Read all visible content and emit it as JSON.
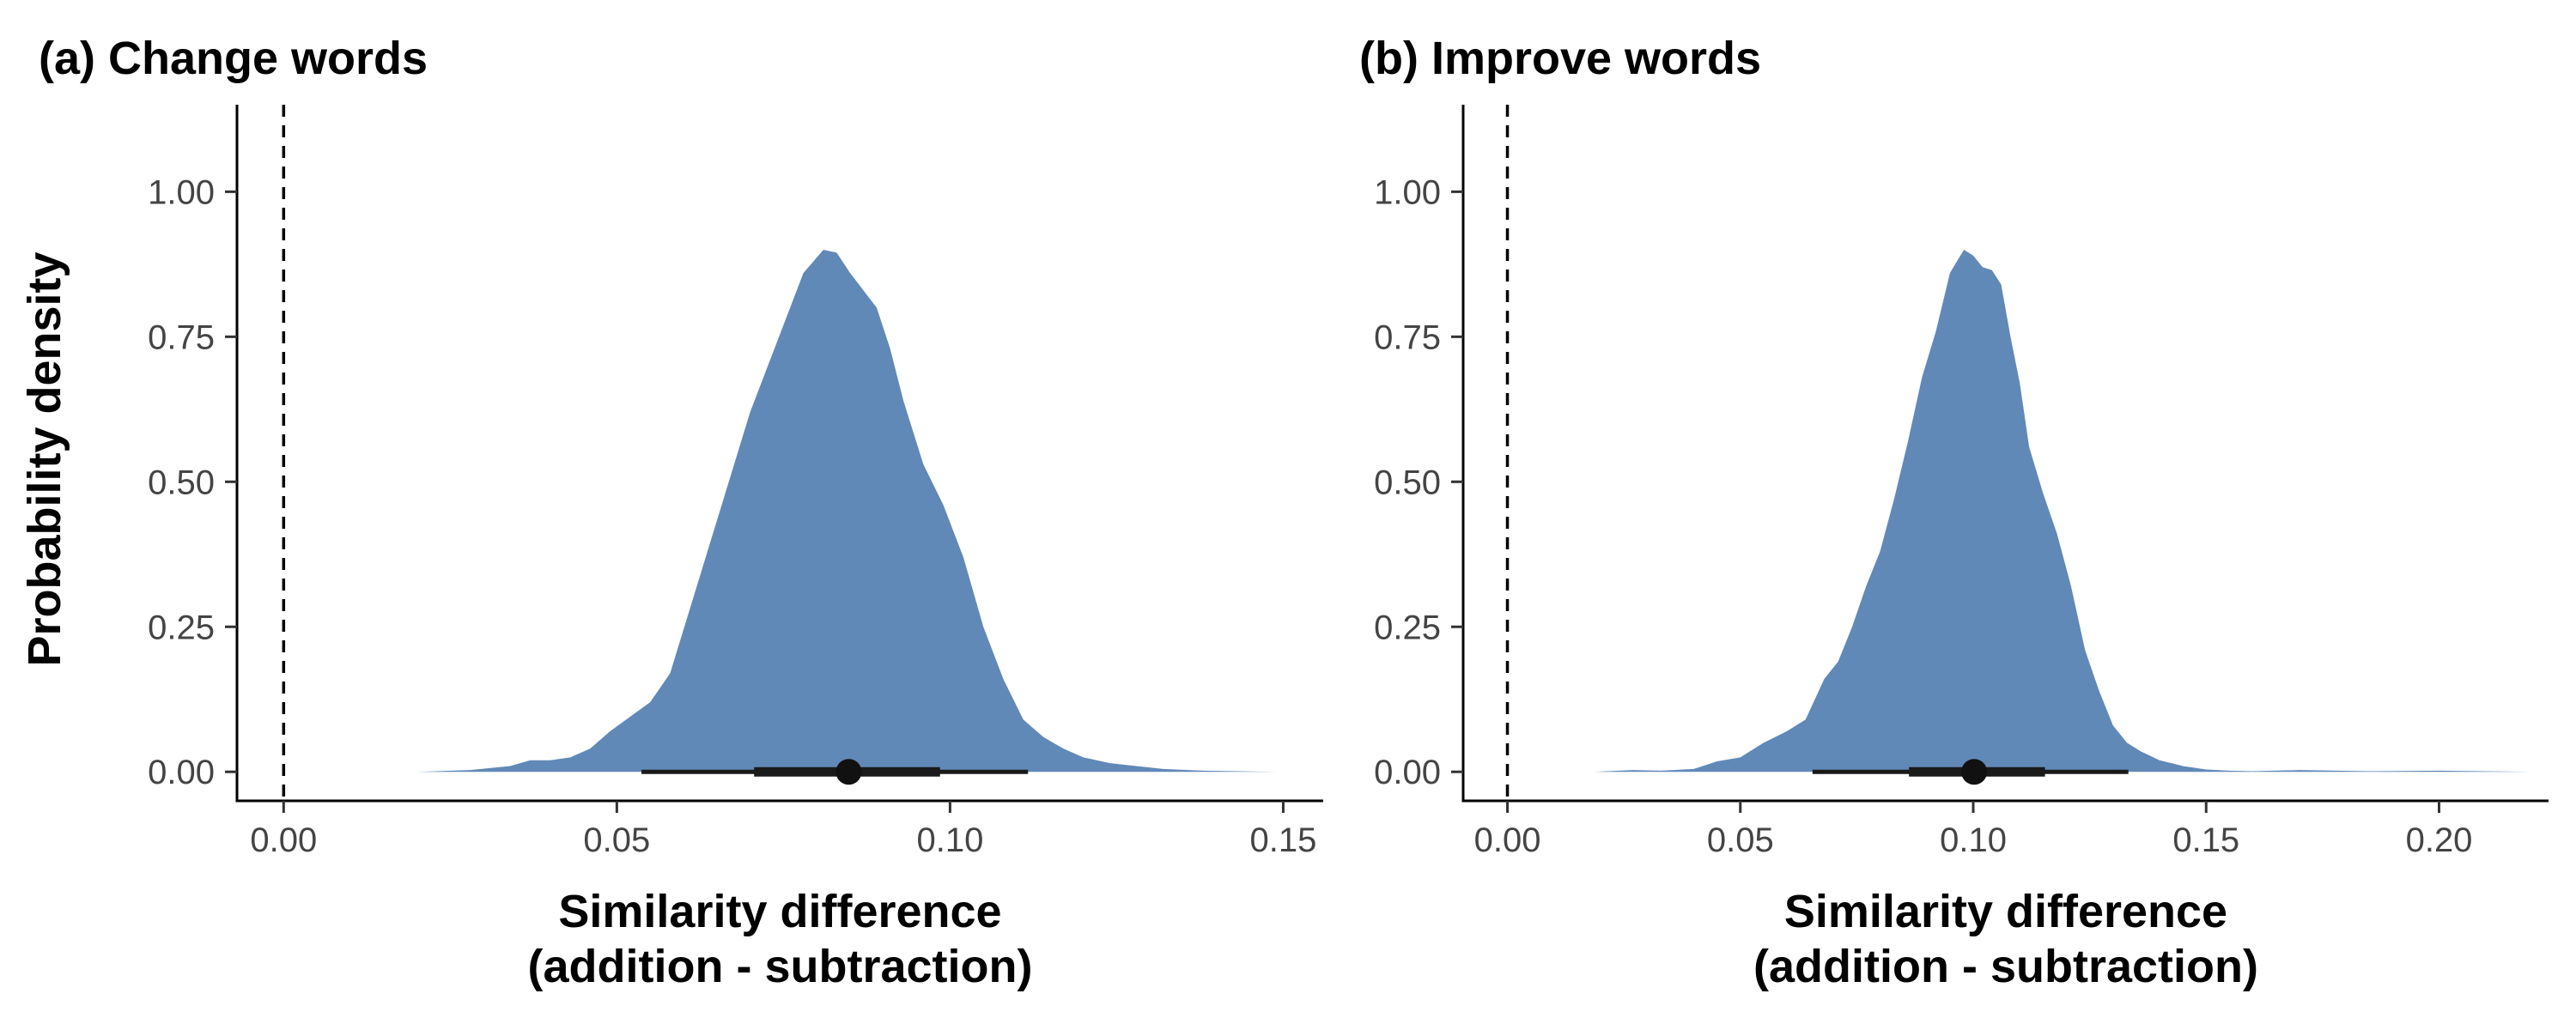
{
  "figure": {
    "ylabel": "Probability density"
  },
  "chart_data": [
    {
      "type": "area",
      "title": "(a) Change words",
      "xlabel_lines": [
        "Similarity difference",
        "(addition - subtraction)"
      ],
      "xlim": [
        -0.007,
        0.156
      ],
      "ylim": [
        -0.05,
        1.15
      ],
      "xticks": [
        0.0,
        0.05,
        0.1,
        0.15
      ],
      "xtick_labels": [
        "0.00",
        "0.05",
        "0.10",
        "0.15"
      ],
      "yticks": [
        0.0,
        0.25,
        0.5,
        0.75,
        1.0
      ],
      "ytick_labels": [
        "0.00",
        "0.25",
        "0.50",
        "0.75",
        "1.00"
      ],
      "reference_line_x": 0.0,
      "fill_color": "#6189b8",
      "density": {
        "x": [
          0.0135,
          0.02,
          0.028,
          0.034,
          0.037,
          0.04,
          0.043,
          0.046,
          0.049,
          0.052,
          0.055,
          0.058,
          0.062,
          0.066,
          0.07,
          0.074,
          0.078,
          0.081,
          0.083,
          0.085,
          0.087,
          0.089,
          0.091,
          0.093,
          0.096,
          0.099,
          0.102,
          0.105,
          0.108,
          0.111,
          0.114,
          0.117,
          0.12,
          0.124,
          0.128,
          0.132,
          0.138,
          0.149
        ],
        "y": [
          0.0,
          0.0,
          0.003,
          0.01,
          0.02,
          0.02,
          0.025,
          0.04,
          0.07,
          0.095,
          0.12,
          0.17,
          0.32,
          0.47,
          0.62,
          0.74,
          0.86,
          0.9,
          0.895,
          0.86,
          0.83,
          0.8,
          0.73,
          0.64,
          0.53,
          0.46,
          0.37,
          0.25,
          0.16,
          0.09,
          0.06,
          0.04,
          0.025,
          0.015,
          0.01,
          0.005,
          0.002,
          0.0
        ]
      },
      "point_estimate": 0.0848,
      "interval_inner": [
        0.0706,
        0.0985
      ],
      "interval_outer": [
        0.0537,
        0.1117
      ]
    },
    {
      "type": "area",
      "title": "(b) Improve words",
      "xlabel_lines": [
        "Similarity difference",
        "(addition - subtraction)"
      ],
      "xlim": [
        -0.0095,
        0.2235
      ],
      "ylim": [
        -0.05,
        1.15
      ],
      "xticks": [
        0.0,
        0.05,
        0.1,
        0.15,
        0.2
      ],
      "xtick_labels": [
        "0.00",
        "0.05",
        "0.10",
        "0.15",
        "0.20"
      ],
      "yticks": [
        0.0,
        0.25,
        0.5,
        0.75,
        1.0
      ],
      "ytick_labels": [
        "0.00",
        "0.25",
        "0.50",
        "0.75",
        "1.00"
      ],
      "reference_line_x": 0.0,
      "fill_color": "#6189b8",
      "density": {
        "x": [
          0.0185,
          0.027,
          0.033,
          0.04,
          0.045,
          0.05,
          0.055,
          0.06,
          0.064,
          0.068,
          0.071,
          0.074,
          0.077,
          0.08,
          0.083,
          0.086,
          0.089,
          0.092,
          0.095,
          0.098,
          0.1,
          0.102,
          0.104,
          0.106,
          0.108,
          0.11,
          0.112,
          0.115,
          0.118,
          0.121,
          0.124,
          0.127,
          0.13,
          0.133,
          0.136,
          0.14,
          0.145,
          0.15,
          0.155,
          0.16,
          0.17,
          0.185,
          0.2,
          0.22
        ],
        "y": [
          0.0,
          0.003,
          0.002,
          0.005,
          0.018,
          0.025,
          0.05,
          0.07,
          0.09,
          0.16,
          0.19,
          0.25,
          0.32,
          0.38,
          0.47,
          0.57,
          0.68,
          0.76,
          0.86,
          0.9,
          0.89,
          0.87,
          0.865,
          0.84,
          0.75,
          0.67,
          0.56,
          0.48,
          0.41,
          0.32,
          0.21,
          0.14,
          0.08,
          0.05,
          0.035,
          0.02,
          0.01,
          0.004,
          0.002,
          0.001,
          0.003,
          0.001,
          0.002,
          0.0
        ]
      },
      "point_estimate": 0.1002,
      "interval_inner": [
        0.0862,
        0.1154
      ],
      "interval_outer": [
        0.0655,
        0.1333
      ]
    }
  ]
}
